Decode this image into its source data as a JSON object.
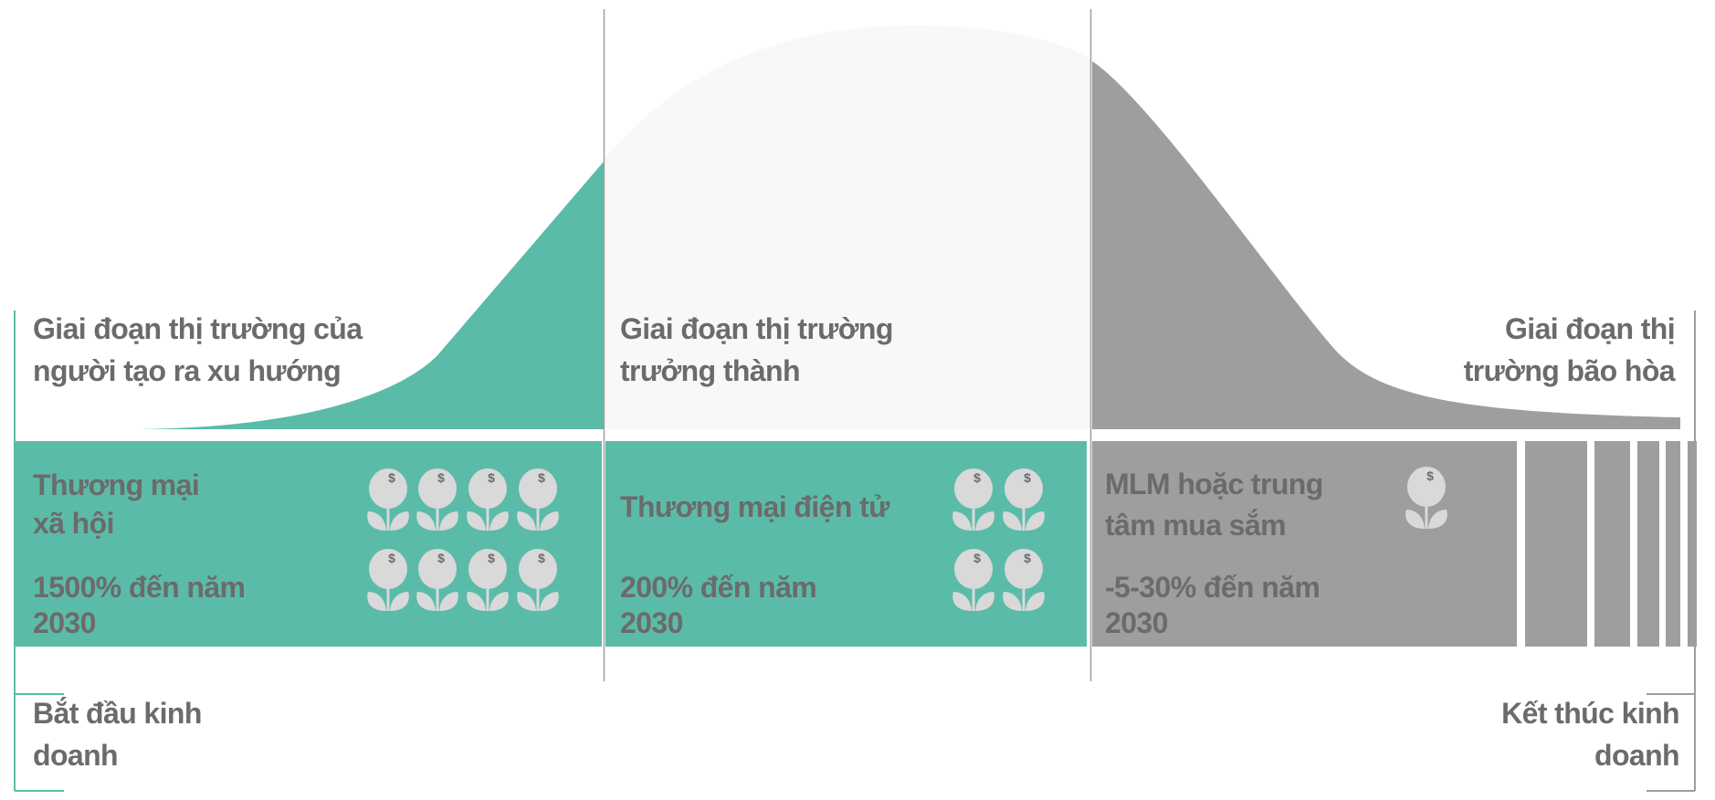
{
  "colors": {
    "teal": "#5bbba9",
    "gray": "#9e9e9e",
    "light": "#f8f8f8",
    "text": "#6b6b6b",
    "icon": "#d9d9d9",
    "divider": "#a0a0a0"
  },
  "stages": [
    {
      "title": [
        "Giai đoạn thị trường của",
        "người tạo ra xu hướng"
      ],
      "channel": [
        "Thương mại",
        "xã hội"
      ],
      "growth": [
        "1500% đến năm",
        "2030"
      ],
      "icon": "money-plant-icon",
      "icon_count": 8
    },
    {
      "title": [
        "Giai đoạn thị trường",
        "trưởng thành"
      ],
      "channel": [
        "Thương mại điện tử"
      ],
      "growth": [
        "200% đến năm",
        "2030"
      ],
      "icon": "money-plant-icon",
      "icon_count": 4
    },
    {
      "title": [
        "Giai đoạn thị",
        "trường bão hòa"
      ],
      "channel": [
        "MLM hoặc trung",
        "tâm mua sắm"
      ],
      "growth": [
        "-5-30% đến năm",
        "2030"
      ],
      "icon": "money-plant-icon",
      "icon_count": 1
    }
  ],
  "start_label": [
    "Bắt đầu kinh",
    "doanh"
  ],
  "end_label": [
    "Kết thúc kinh",
    "doanh"
  ]
}
